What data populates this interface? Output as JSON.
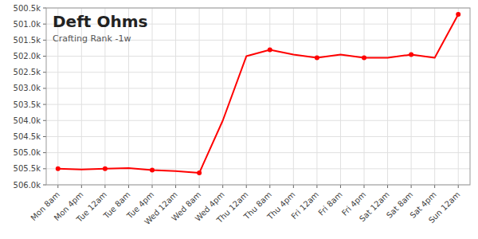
{
  "chart_data": {
    "type": "line",
    "title": "Deft Ohms",
    "subtitle": "Crafting Rank -1w",
    "categories": [
      "Mon 8am",
      "Mon 4pm",
      "Tue 12am",
      "Tue 8am",
      "Tue 4pm",
      "Wed 12am",
      "Wed 8am",
      "Wed 4pm",
      "Thu 12am",
      "Thu 8am",
      "Thu 4pm",
      "Fri 12am",
      "Fri 8am",
      "Fri 4pm",
      "Sat 12am",
      "Sat 8am",
      "Sat 4pm",
      "Sun 12am"
    ],
    "series": [
      {
        "type": "line",
        "color": "#ff0000",
        "values": [
          505500,
          505520,
          505500,
          505480,
          505540,
          505570,
          505630,
          504000,
          502000,
          501800,
          501950,
          502050,
          501950,
          502050,
          502050,
          501950,
          502050,
          500700
        ]
      },
      {
        "type": "scatter",
        "color": "#ff0000",
        "marker": "circle",
        "values": [
          505500,
          null,
          505500,
          null,
          505540,
          null,
          505630,
          null,
          null,
          501800,
          null,
          502050,
          null,
          502050,
          null,
          501950,
          null,
          500700
        ]
      }
    ],
    "ylim": [
      506000,
      500500
    ],
    "yticks": [
      {
        "value": 500500,
        "label": "500.5k"
      },
      {
        "value": 501000,
        "label": "501.0k"
      },
      {
        "value": 501500,
        "label": "501.5k"
      },
      {
        "value": 502000,
        "label": "502.0k"
      },
      {
        "value": 502500,
        "label": "502.5k"
      },
      {
        "value": 503000,
        "label": "503.0k"
      },
      {
        "value": 503500,
        "label": "503.5k"
      },
      {
        "value": 504000,
        "label": "504.0k"
      },
      {
        "value": 504500,
        "label": "504.5k"
      },
      {
        "value": 505000,
        "label": "505.0k"
      },
      {
        "value": 505500,
        "label": "505.5k"
      },
      {
        "value": 506000,
        "label": "506.0k"
      }
    ],
    "grid": true
  }
}
